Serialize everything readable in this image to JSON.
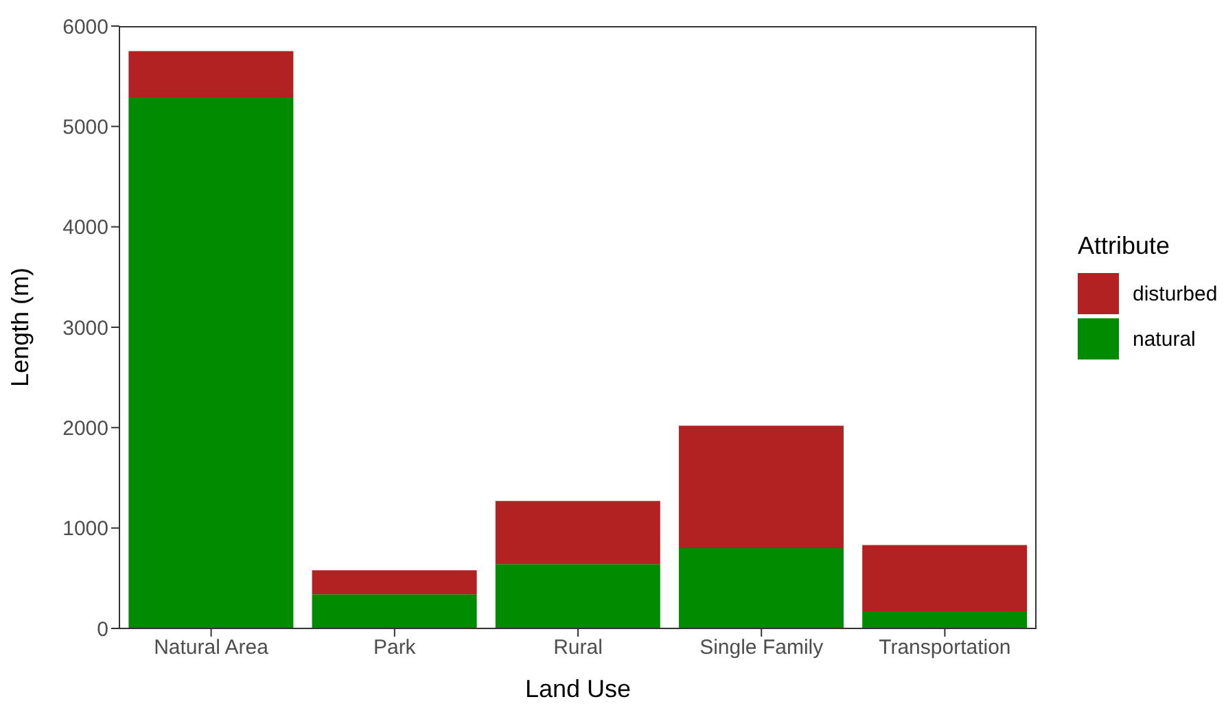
{
  "chart_data": {
    "type": "bar",
    "xlabel": "Land Use",
    "ylabel": "Length (m)",
    "legend_title": "Attribute",
    "categories": [
      "Natural Area",
      "Park",
      "Rural",
      "Single Family",
      "Transportation"
    ],
    "stacked": true,
    "series": [
      {
        "name": "natural",
        "color": "#008b00",
        "values": [
          5290,
          340,
          640,
          800,
          170
        ]
      },
      {
        "name": "disturbed",
        "color": "#b22222",
        "values": [
          460,
          240,
          630,
          1220,
          660
        ]
      }
    ],
    "ylim": [
      0,
      6000
    ],
    "yticks": [
      0,
      1000,
      2000,
      3000,
      4000,
      5000,
      6000
    ],
    "grid": false,
    "legend": "right"
  }
}
